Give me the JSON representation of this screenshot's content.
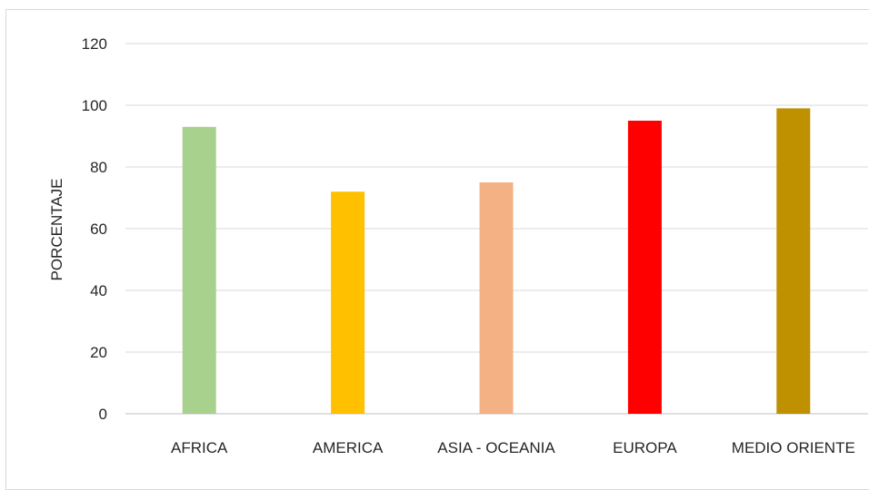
{
  "chart_data": {
    "type": "bar",
    "title": "",
    "xlabel": "",
    "ylabel": "PORCENTAJE",
    "ylim": [
      0,
      120
    ],
    "yticks": [
      0,
      20,
      40,
      60,
      80,
      100,
      120
    ],
    "grid": true,
    "legend": "none",
    "categories": [
      "AFRICA",
      "AMERICA",
      "ASIA - OCEANIA",
      "EUROPA",
      "MEDIO ORIENTE"
    ],
    "values": [
      93,
      72,
      75,
      95,
      99
    ],
    "colors": [
      "#a9d18e",
      "#ffc000",
      "#f4b183",
      "#ff0000",
      "#bf9000"
    ]
  }
}
